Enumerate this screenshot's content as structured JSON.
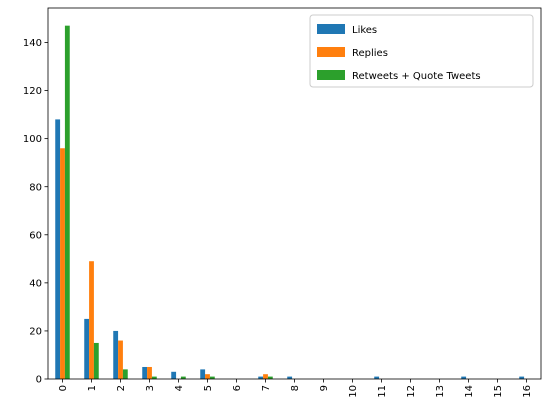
{
  "chart_data": {
    "type": "bar",
    "categories": [
      "0",
      "1",
      "2",
      "3",
      "4",
      "5",
      "6",
      "7",
      "8",
      "9",
      "10",
      "11",
      "12",
      "13",
      "14",
      "15",
      "16"
    ],
    "series": [
      {
        "name": "Likes",
        "color": "#1f77b4",
        "values": [
          108,
          25,
          20,
          5,
          3,
          4,
          0,
          1,
          1,
          0,
          0,
          1,
          0,
          0,
          1,
          0,
          1
        ]
      },
      {
        "name": "Replies",
        "color": "#ff7f0e",
        "values": [
          96,
          49,
          16,
          5,
          0,
          2,
          0,
          2,
          0,
          0,
          0,
          0,
          0,
          0,
          0,
          0,
          0
        ]
      },
      {
        "name": "Retweets + Quote Tweets",
        "color": "#2ca02c",
        "values": [
          147,
          15,
          4,
          1,
          1,
          1,
          0,
          1,
          0,
          0,
          0,
          0,
          0,
          0,
          0,
          0,
          0
        ]
      }
    ],
    "y_ticks": [
      0,
      20,
      40,
      60,
      80,
      100,
      120,
      140
    ],
    "ylim": [
      0,
      154.35
    ],
    "xlabel_rotation": "vertical",
    "grid": false,
    "legend_position": "top-right",
    "title": "",
    "xlabel": "",
    "ylabel": ""
  }
}
